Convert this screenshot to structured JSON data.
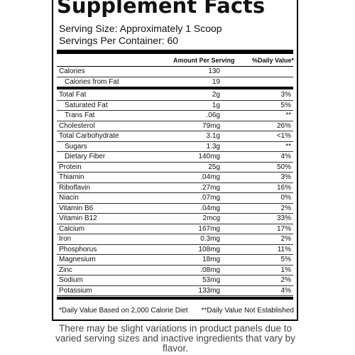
{
  "header": {
    "title": "Supplement Facts",
    "serving_size": "Serving Size: Approximately 1 Scoop",
    "servings_per_container": "Servings Per Container: 60"
  },
  "table": {
    "columns": [
      "Amount Per Serving",
      "%Daily Value*"
    ],
    "sections": [
      {
        "rows": [
          {
            "label": "Calories",
            "amount": "130",
            "daily_value": "",
            "subrows": [
              {
                "label": "Calories from Fat",
                "amount": "19",
                "daily_value": ""
              }
            ]
          }
        ]
      },
      {
        "rows": [
          {
            "label": "Total Fat",
            "amount": "2g",
            "daily_value": "3%",
            "subrows": [
              {
                "label": "Saturated Fat",
                "amount": "1g",
                "daily_value": "5%"
              },
              {
                "label": "Trans Fat",
                "amount": ".06g",
                "daily_value": "**"
              }
            ]
          },
          {
            "label": "Cholesterol",
            "amount": "79mg",
            "daily_value": "26%"
          },
          {
            "label": "Total Carbohydrate",
            "amount": "3.1g",
            "daily_value": "<1%",
            "subrows": [
              {
                "label": "Sugars",
                "amount": "1.3g",
                "daily_value": "**"
              },
              {
                "label": "Dietary Fiber",
                "amount": "140mg",
                "daily_value": "4%"
              }
            ]
          },
          {
            "label": "Protein",
            "amount": "25g",
            "daily_value": "50%"
          },
          {
            "label": "Thiamin",
            "amount": ".04mg",
            "daily_value": "3%"
          },
          {
            "label": "Riboflavin",
            "amount": ".27mg",
            "daily_value": "16%"
          },
          {
            "label": "Niacin",
            "amount": ".07mg",
            "daily_value": "0%"
          },
          {
            "label": "Vitamin B6",
            "amount": ".04mg",
            "daily_value": "2%"
          },
          {
            "label": "Vitamin B12",
            "amount": "2mcg",
            "daily_value": "33%"
          },
          {
            "label": "Calcium",
            "amount": "167mg",
            "daily_value": "17%"
          },
          {
            "label": "Iron",
            "amount": "0.3mg",
            "daily_value": "2%"
          },
          {
            "label": "Phosphorus",
            "amount": "108mg",
            "daily_value": "11%"
          },
          {
            "label": "Magnesium",
            "amount": "18mg",
            "daily_value": "5%"
          },
          {
            "label": "Zinc",
            "amount": ".08mg",
            "daily_value": "1%"
          },
          {
            "label": "Sodium",
            "amount": "53mg",
            "daily_value": "2%"
          },
          {
            "label": "Potassium",
            "amount": "133mg",
            "daily_value": "4%"
          }
        ]
      }
    ]
  },
  "footer": {
    "left": "*Daily Value Based on 2,000 Calorie Diet",
    "right": "**Daily Value Not Established"
  },
  "disclaimer": "There may be slight variations in product panels due to varied serving sizes and inactive ingredients that vary by flavor."
}
